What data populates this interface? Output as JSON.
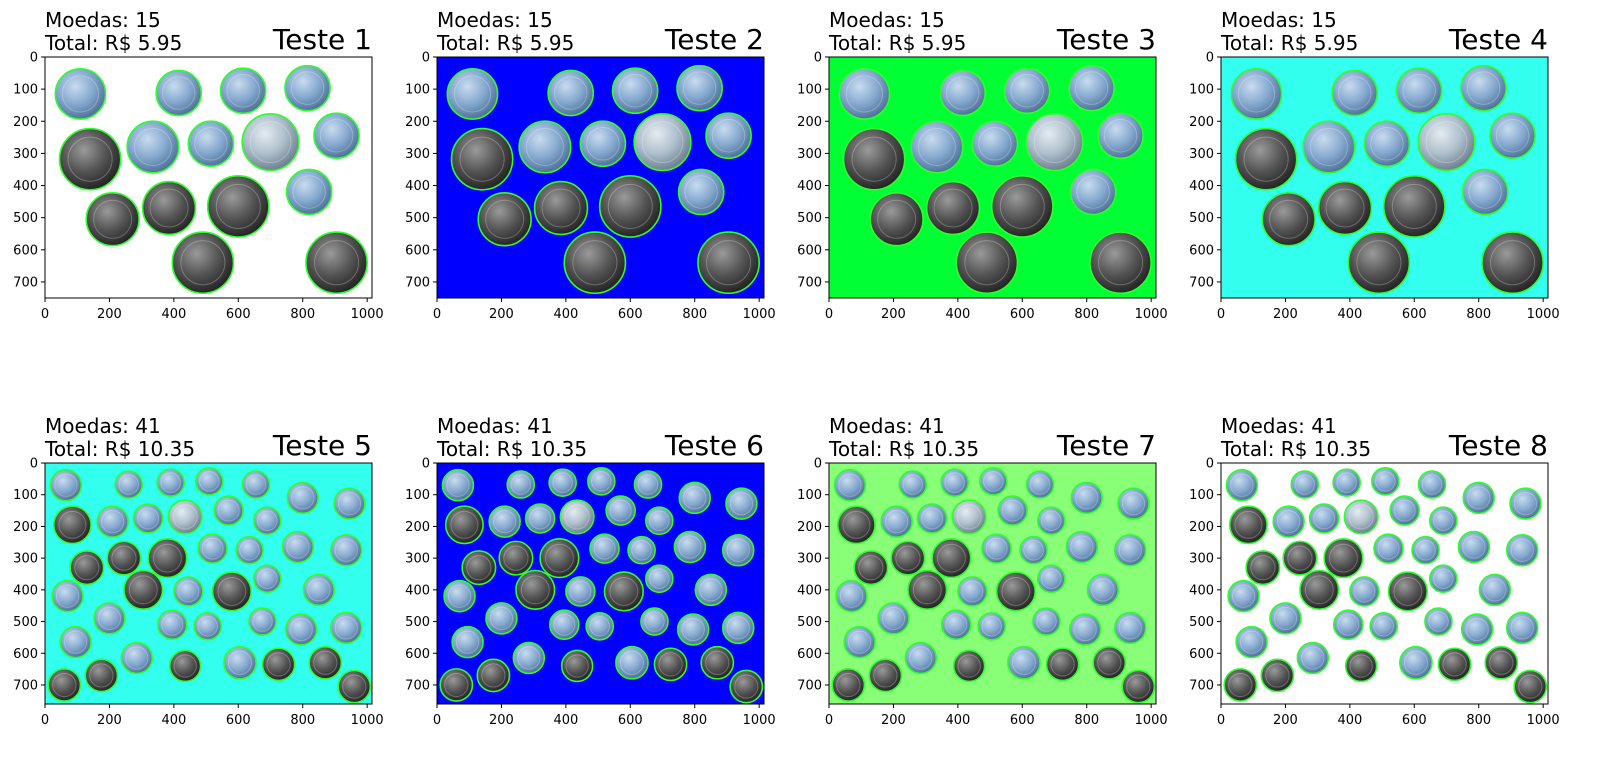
{
  "figure": {
    "panels": [
      {
        "title": "Teste 1",
        "coins_text": "Moedas: 15",
        "total_text": "Total: R$ 5.95",
        "background": "#ffffff",
        "set": "a"
      },
      {
        "title": "Teste 2",
        "coins_text": "Moedas: 15",
        "total_text": "Total: R$ 5.95",
        "background": "#0000ff",
        "set": "a"
      },
      {
        "title": "Teste 3",
        "coins_text": "Moedas: 15",
        "total_text": "Total: R$ 5.95",
        "background": "#00ff33",
        "set": "a"
      },
      {
        "title": "Teste 4",
        "coins_text": "Moedas: 15",
        "total_text": "Total: R$ 5.95",
        "background": "#33ffee",
        "set": "a"
      },
      {
        "title": "Teste 5",
        "coins_text": "Moedas: 41",
        "total_text": "Total: R$ 10.35",
        "background": "#33ffee",
        "set": "b"
      },
      {
        "title": "Teste 6",
        "coins_text": "Moedas: 41",
        "total_text": "Total: R$ 10.35",
        "background": "#0000ff",
        "set": "b"
      },
      {
        "title": "Teste 7",
        "coins_text": "Moedas: 41",
        "total_text": "Total: R$ 10.35",
        "background": "#88ff77",
        "set": "b"
      },
      {
        "title": "Teste 8",
        "coins_text": "Moedas: 41",
        "total_text": "Total: R$ 10.35",
        "background": "#ffffff",
        "set": "b"
      }
    ]
  },
  "chart_data": [
    {
      "type": "image",
      "set": "a",
      "x_ticks": [
        0,
        200,
        400,
        600,
        800,
        1000
      ],
      "y_ticks": [
        0,
        100,
        200,
        300,
        400,
        500,
        600,
        700
      ],
      "xlim": [
        0,
        1015
      ],
      "ylim": [
        750,
        0
      ],
      "coins": [
        {
          "x": 110,
          "y": 115,
          "r": 78,
          "kind": "silver"
        },
        {
          "x": 415,
          "y": 112,
          "r": 70,
          "kind": "silver"
        },
        {
          "x": 615,
          "y": 105,
          "r": 70,
          "kind": "silver"
        },
        {
          "x": 815,
          "y": 97,
          "r": 70,
          "kind": "silver"
        },
        {
          "x": 140,
          "y": 318,
          "r": 95,
          "kind": "dark"
        },
        {
          "x": 335,
          "y": 280,
          "r": 80,
          "kind": "silver"
        },
        {
          "x": 515,
          "y": 270,
          "r": 70,
          "kind": "silver"
        },
        {
          "x": 700,
          "y": 265,
          "r": 88,
          "kind": "light"
        },
        {
          "x": 905,
          "y": 245,
          "r": 70,
          "kind": "silver"
        },
        {
          "x": 210,
          "y": 505,
          "r": 82,
          "kind": "dark"
        },
        {
          "x": 385,
          "y": 470,
          "r": 82,
          "kind": "dark"
        },
        {
          "x": 600,
          "y": 465,
          "r": 95,
          "kind": "dark"
        },
        {
          "x": 820,
          "y": 420,
          "r": 70,
          "kind": "silver"
        },
        {
          "x": 490,
          "y": 640,
          "r": 95,
          "kind": "dark"
        },
        {
          "x": 905,
          "y": 640,
          "r": 95,
          "kind": "dark"
        }
      ]
    },
    {
      "type": "image",
      "set": "b",
      "x_ticks": [
        0,
        200,
        400,
        600,
        800,
        1000
      ],
      "y_ticks": [
        0,
        100,
        200,
        300,
        400,
        500,
        600,
        700
      ],
      "xlim": [
        0,
        1015
      ],
      "ylim": [
        760,
        0
      ],
      "coins": [
        {
          "x": 65,
          "y": 70,
          "r": 48,
          "kind": "silver"
        },
        {
          "x": 260,
          "y": 68,
          "r": 42,
          "kind": "silver"
        },
        {
          "x": 390,
          "y": 62,
          "r": 42,
          "kind": "silver"
        },
        {
          "x": 510,
          "y": 58,
          "r": 42,
          "kind": "silver"
        },
        {
          "x": 655,
          "y": 68,
          "r": 42,
          "kind": "silver"
        },
        {
          "x": 800,
          "y": 110,
          "r": 48,
          "kind": "silver"
        },
        {
          "x": 945,
          "y": 128,
          "r": 48,
          "kind": "silver"
        },
        {
          "x": 85,
          "y": 195,
          "r": 58,
          "kind": "dark"
        },
        {
          "x": 210,
          "y": 185,
          "r": 48,
          "kind": "silver"
        },
        {
          "x": 320,
          "y": 175,
          "r": 45,
          "kind": "silver"
        },
        {
          "x": 435,
          "y": 170,
          "r": 52,
          "kind": "light"
        },
        {
          "x": 570,
          "y": 150,
          "r": 45,
          "kind": "silver"
        },
        {
          "x": 690,
          "y": 182,
          "r": 42,
          "kind": "silver"
        },
        {
          "x": 130,
          "y": 330,
          "r": 52,
          "kind": "dark"
        },
        {
          "x": 245,
          "y": 300,
          "r": 52,
          "kind": "dark"
        },
        {
          "x": 380,
          "y": 300,
          "r": 60,
          "kind": "dark"
        },
        {
          "x": 520,
          "y": 270,
          "r": 45,
          "kind": "silver"
        },
        {
          "x": 635,
          "y": 275,
          "r": 42,
          "kind": "silver"
        },
        {
          "x": 785,
          "y": 265,
          "r": 48,
          "kind": "silver"
        },
        {
          "x": 935,
          "y": 275,
          "r": 48,
          "kind": "silver"
        },
        {
          "x": 305,
          "y": 400,
          "r": 60,
          "kind": "dark"
        },
        {
          "x": 445,
          "y": 405,
          "r": 45,
          "kind": "silver"
        },
        {
          "x": 580,
          "y": 405,
          "r": 60,
          "kind": "dark"
        },
        {
          "x": 690,
          "y": 365,
          "r": 42,
          "kind": "silver"
        },
        {
          "x": 850,
          "y": 400,
          "r": 48,
          "kind": "silver"
        },
        {
          "x": 70,
          "y": 420,
          "r": 48,
          "kind": "silver"
        },
        {
          "x": 200,
          "y": 490,
          "r": 48,
          "kind": "silver"
        },
        {
          "x": 395,
          "y": 510,
          "r": 45,
          "kind": "silver"
        },
        {
          "x": 505,
          "y": 515,
          "r": 42,
          "kind": "silver"
        },
        {
          "x": 675,
          "y": 500,
          "r": 42,
          "kind": "silver"
        },
        {
          "x": 795,
          "y": 525,
          "r": 48,
          "kind": "silver"
        },
        {
          "x": 935,
          "y": 520,
          "r": 48,
          "kind": "silver"
        },
        {
          "x": 95,
          "y": 565,
          "r": 48,
          "kind": "silver"
        },
        {
          "x": 285,
          "y": 615,
          "r": 48,
          "kind": "silver"
        },
        {
          "x": 435,
          "y": 640,
          "r": 48,
          "kind": "dark"
        },
        {
          "x": 605,
          "y": 630,
          "r": 50,
          "kind": "silver"
        },
        {
          "x": 725,
          "y": 635,
          "r": 50,
          "kind": "dark"
        },
        {
          "x": 870,
          "y": 630,
          "r": 50,
          "kind": "dark"
        },
        {
          "x": 60,
          "y": 700,
          "r": 50,
          "kind": "dark"
        },
        {
          "x": 175,
          "y": 670,
          "r": 50,
          "kind": "dark"
        },
        {
          "x": 960,
          "y": 705,
          "r": 50,
          "kind": "dark"
        }
      ]
    }
  ]
}
